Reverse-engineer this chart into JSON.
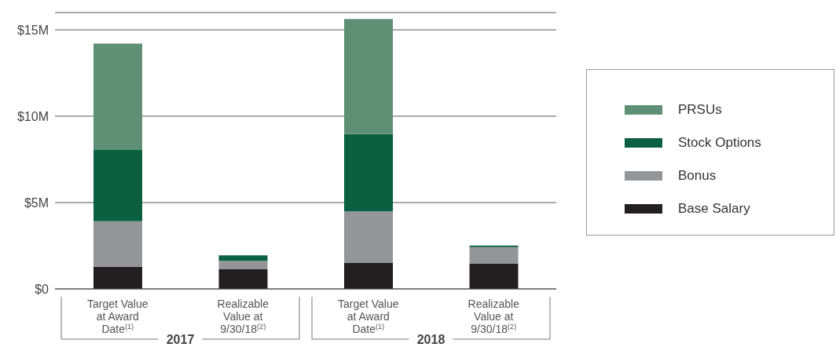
{
  "chart_data": {
    "type": "bar",
    "stacked": true,
    "categories": [
      "Target Value at Award Date$^{(1)}$",
      "Realizable Value at 9/30/18$^{(2)}$",
      "Target Value at Award Date$^{(1)}$",
      "Realizable Value at 9/30/18$^{(2)}$"
    ],
    "series": [
      {
        "name": "Base Salary",
        "color": "#231f20",
        "values": [
          1.28,
          1.14,
          1.5,
          1.45
        ]
      },
      {
        "name": "Bonus",
        "color": "#939598",
        "values": [
          2.64,
          0.49,
          2.99,
          0.97
        ]
      },
      {
        "name": "Stock Options",
        "color": "#0a6040",
        "values": [
          4.13,
          0.31,
          4.48,
          0.09
        ]
      },
      {
        "name": "PRSUs",
        "color": "#5f9076",
        "values": [
          6.16,
          null,
          6.65,
          null
        ]
      }
    ],
    "ylim": [
      0,
      16
    ],
    "yticks": [
      {
        "value": 0,
        "label": "$0"
      },
      {
        "value": 5,
        "label": "$5M"
      },
      {
        "value": 10,
        "label": "$10M"
      },
      {
        "value": 15,
        "label": "$15M"
      }
    ],
    "grid": "y",
    "legend": "right",
    "annotations": [
      "2017",
      "2018"
    ]
  }
}
